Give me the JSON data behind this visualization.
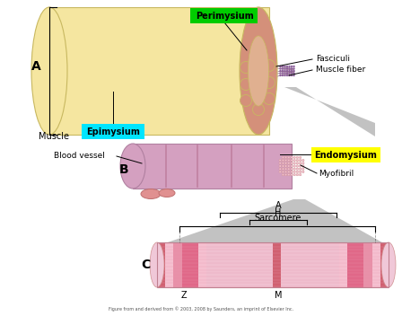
{
  "bg_color": "#ffffff",
  "label_A": "A",
  "label_B": "B",
  "label_C": "C",
  "muscle_label": "Muscle",
  "epimysium_label": "Epimysium",
  "epimysium_color": "#00e5ff",
  "perimysium_label": "Perimysium",
  "perimysium_color": "#00cc00",
  "endomysium_label": "Endomysium",
  "endomysium_color": "#ffff00",
  "fasciculi_label": "Fasciculi",
  "muscle_fiber_label": "Muscle fiber",
  "blood_vessel_label": "Blood vessel",
  "myofibril_label": "Myofibril",
  "sarcomere_label": "Sarcomere",
  "zone_A_label": "A",
  "zone_H_label": "H",
  "zone_Z_label": "Z",
  "zone_M_label": "M",
  "footer_text": "Figure from and derived from © 2003, 2008 by Saunders, an imprint of Elsevier Inc.",
  "muscle_body_color": "#f5e6a0",
  "muscle_body_edge": "#c8b860",
  "fascicle_fill": "#d4907a",
  "fascicle_edge": "#b07060",
  "fiber_fill": "#c8a0b4",
  "sarcomere_fill": "#f0b0c0",
  "sarcomere_stripe": "#e87090",
  "sarcomere_mid": "#d06080",
  "gray_wedge": "#b8b8b8",
  "purple_dot": "#9060a0",
  "purple_dot_edge": "#704080"
}
